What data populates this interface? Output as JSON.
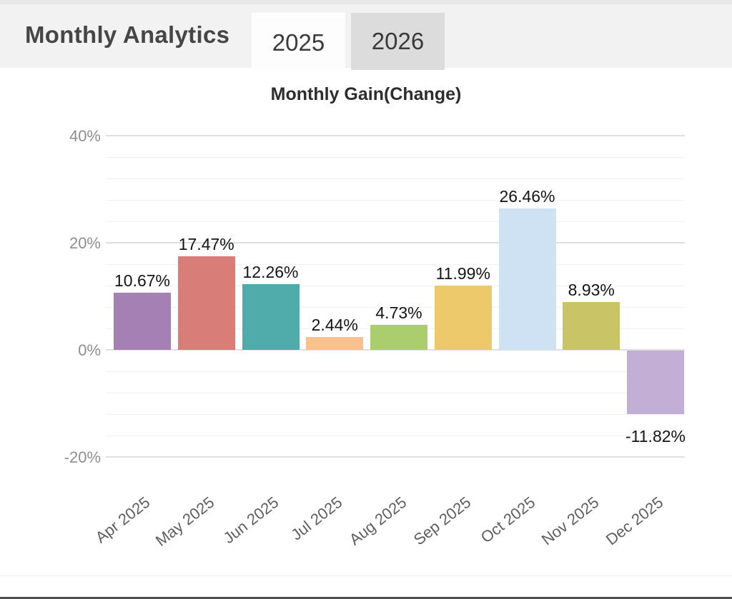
{
  "header": {
    "title": "Monthly Analytics",
    "tabs": [
      {
        "label": "2025",
        "active": true
      },
      {
        "label": "2026",
        "active": false
      }
    ]
  },
  "chart_data": {
    "type": "bar",
    "title": "Monthly Gain(Change)",
    "categories": [
      "Apr 2025",
      "May 2025",
      "Jun 2025",
      "Jul 2025",
      "Aug 2025",
      "Sep 2025",
      "Oct 2025",
      "Nov 2025",
      "Dec 2025"
    ],
    "values": [
      10.67,
      17.47,
      12.26,
      2.44,
      4.73,
      11.99,
      26.46,
      8.93,
      -11.82
    ],
    "value_labels": [
      "10.67%",
      "17.47%",
      "12.26%",
      "2.44%",
      "4.73%",
      "11.99%",
      "26.46%",
      "8.93%",
      "-11.82%"
    ],
    "bar_colors": [
      "#a480b4",
      "#d87d77",
      "#50acaa",
      "#f9c18e",
      "#aacd6e",
      "#edc96b",
      "#cfe2f4",
      "#c9c566",
      "#c3aed6"
    ],
    "xlabel": "",
    "ylabel": "",
    "y_axis": {
      "tick_labels": [
        "40%",
        "20%",
        "0%",
        "-20%"
      ],
      "tick_values": [
        40,
        20,
        0,
        -20
      ],
      "minor_grid_interval": 4,
      "range": [
        -22,
        42
      ]
    },
    "grid": true,
    "legend": false,
    "x_tick_rotation_deg": -38
  },
  "colors": {
    "header_bg": "#f2f2f2",
    "tab_active_bg": "#fdfdfd",
    "tab_inactive_bg": "#dcdcdc",
    "major_grid": "#e0e0e0",
    "minor_grid": "#f2f2f2",
    "value_label": "#141414",
    "y_label": "#8e8e8e",
    "x_label": "#5f5f5f",
    "bottom_bar": "#4f4f4f"
  }
}
